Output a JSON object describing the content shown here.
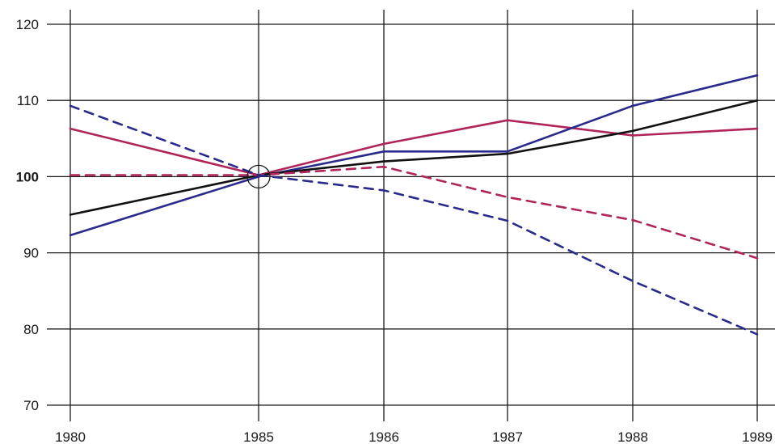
{
  "chart_data": {
    "type": "line",
    "title": "",
    "xlabel": "",
    "ylabel": "",
    "x": [
      "1980",
      "1985",
      "1986",
      "1987",
      "1988",
      "1989"
    ],
    "ylim": [
      70,
      120
    ],
    "yticks": [
      {
        "value": 70,
        "label": "70",
        "bold": false
      },
      {
        "value": 80,
        "label": "80",
        "bold": false
      },
      {
        "value": 90,
        "label": "90",
        "bold": false
      },
      {
        "value": 100,
        "label": "100",
        "bold": true
      },
      {
        "value": 110,
        "label": "110",
        "bold": false
      },
      {
        "value": 120,
        "label": "120",
        "bold": false
      }
    ],
    "grid": true,
    "legend": "none",
    "reference_marker": {
      "x": "1985",
      "y": 100,
      "shape": "circle"
    },
    "series": [
      {
        "color": "#b0245a",
        "style": "solid",
        "values": [
          106.3,
          100.2,
          104.3,
          107.4,
          105.4,
          106.3
        ]
      },
      {
        "color": "#2a2a8c",
        "style": "solid",
        "values": [
          92.3,
          100.0,
          103.3,
          103.3,
          109.3,
          113.3
        ]
      },
      {
        "color": "#111111",
        "style": "solid",
        "values": [
          95.0,
          100.2,
          102.0,
          103.0,
          106.0,
          110.0
        ]
      },
      {
        "color": "#b0245a",
        "style": "dashed",
        "values": [
          100.2,
          100.2,
          101.3,
          97.3,
          94.3,
          89.3
        ]
      },
      {
        "color": "#2a2a8c",
        "style": "dashed",
        "values": [
          109.3,
          100.2,
          98.2,
          94.2,
          86.3,
          79.3
        ]
      }
    ]
  }
}
